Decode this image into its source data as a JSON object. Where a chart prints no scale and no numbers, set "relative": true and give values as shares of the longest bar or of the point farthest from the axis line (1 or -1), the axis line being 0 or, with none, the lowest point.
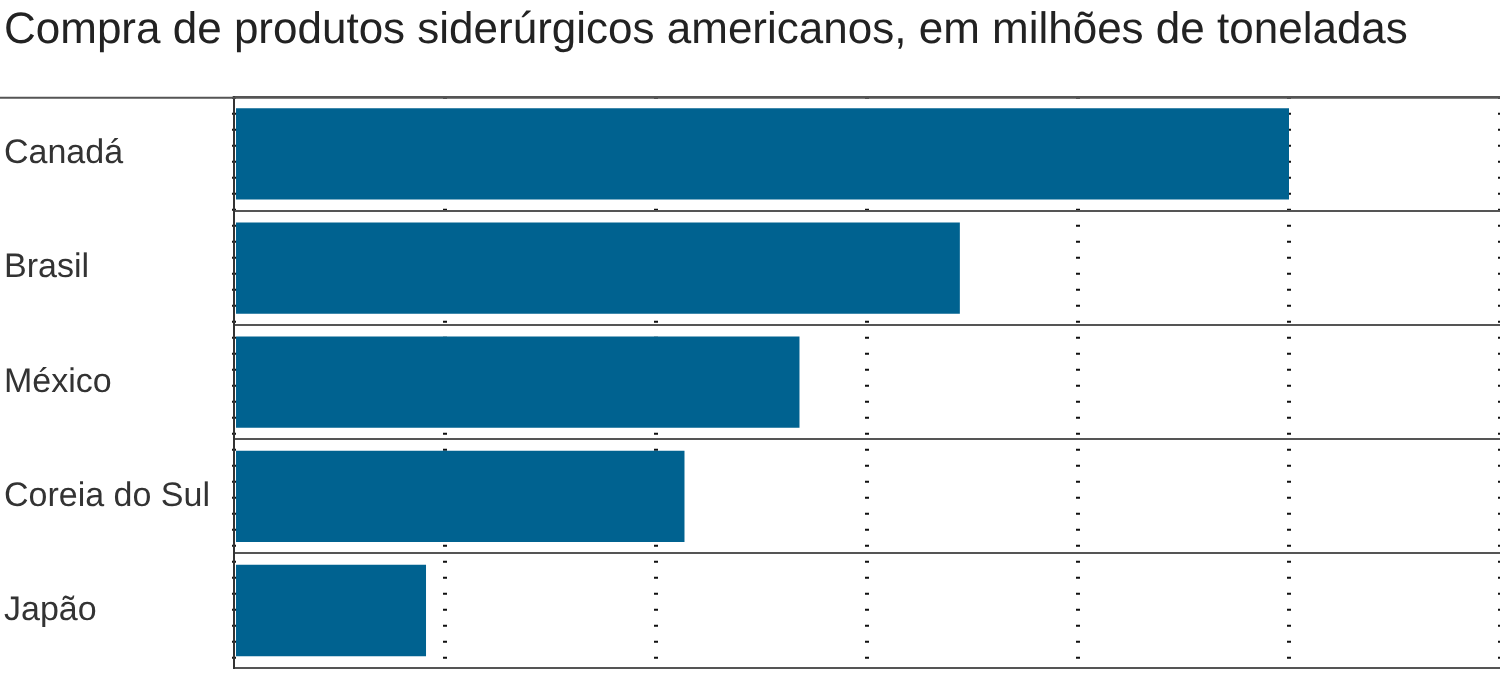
{
  "chart_data": {
    "type": "bar",
    "orientation": "horizontal",
    "relative": true,
    "title": "Compra de produtos siderúrgicos americanos, em milhões de toneladas",
    "categories": [
      "Canadá",
      "Brasil",
      "México",
      "Coreia do Sul",
      "Japão"
    ],
    "values": [
      1,
      0.688,
      0.536,
      0.427,
      0.182
    ],
    "color": "#006290",
    "grid": true
  }
}
